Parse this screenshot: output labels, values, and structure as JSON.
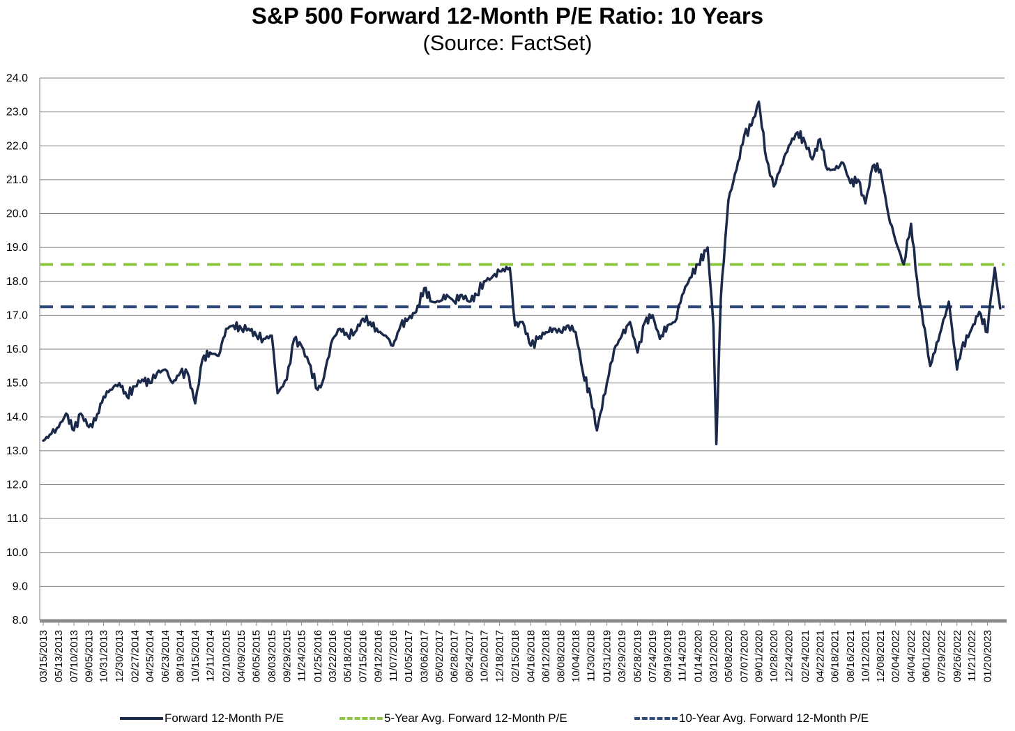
{
  "chart_data": {
    "type": "line",
    "title": "S&P 500 Forward 12-Month P/E Ratio: 10 Years",
    "subtitle": "(Source: FactSet)",
    "xlabel": "",
    "ylabel": "",
    "ylim": [
      8.0,
      24.0
    ],
    "y_ticks": [
      "24.0",
      "23.0",
      "22.0",
      "21.0",
      "20.0",
      "19.0",
      "18.0",
      "17.0",
      "16.0",
      "15.0",
      "14.0",
      "13.0",
      "12.0",
      "11.0",
      "10.0",
      "9.0",
      "8.0"
    ],
    "x_tick_labels": [
      "03/15/2013",
      "05/13/2013",
      "07/10/2013",
      "09/05/2013",
      "10/31/2013",
      "12/30/2013",
      "02/27/2014",
      "04/25/2014",
      "06/23/2014",
      "08/19/2014",
      "10/15/2014",
      "12/11/2014",
      "02/10/2015",
      "04/09/2015",
      "06/05/2015",
      "08/03/2015",
      "09/29/2015",
      "11/24/2015",
      "01/25/2016",
      "03/22/2016",
      "05/18/2016",
      "07/15/2016",
      "09/12/2016",
      "11/07/2016",
      "01/05/2017",
      "03/06/2017",
      "05/02/2017",
      "06/28/2017",
      "08/24/2017",
      "10/20/2017",
      "12/18/2017",
      "02/15/2018",
      "04/16/2018",
      "06/12/2018",
      "08/08/2018",
      "10/04/2018",
      "11/30/2018",
      "01/31/2019",
      "03/29/2019",
      "05/28/2019",
      "07/24/2019",
      "09/19/2019",
      "11/14/2019",
      "01/14/2020",
      "03/12/2020",
      "05/08/2020",
      "07/07/2020",
      "09/01/2020",
      "10/28/2020",
      "12/24/2020",
      "02/24/2021",
      "04/22/2021",
      "06/18/2021",
      "08/16/2021",
      "10/12/2021",
      "12/08/2021",
      "02/04/2022",
      "04/04/2022",
      "06/01/2022",
      "07/29/2022",
      "09/26/2022",
      "11/21/2022",
      "01/20/2023"
    ],
    "grid": true,
    "legend_position": "bottom",
    "series": [
      {
        "name": "Forward 12-Month P/E",
        "color": "#1b2a4a",
        "style": "solid",
        "x": [
          "03/15/2013",
          "04/15/2013",
          "05/13/2013",
          "06/10/2013",
          "07/10/2013",
          "08/05/2013",
          "09/05/2013",
          "10/01/2013",
          "10/31/2013",
          "11/25/2013",
          "12/30/2013",
          "01/28/2014",
          "02/27/2014",
          "03/27/2014",
          "04/25/2014",
          "05/23/2014",
          "06/23/2014",
          "07/21/2014",
          "08/19/2014",
          "09/16/2014",
          "10/15/2014",
          "11/12/2014",
          "12/11/2014",
          "01/12/2015",
          "02/10/2015",
          "03/10/2015",
          "04/09/2015",
          "05/07/2015",
          "06/05/2015",
          "07/03/2015",
          "08/03/2015",
          "08/25/2015",
          "09/29/2015",
          "10/27/2015",
          "11/24/2015",
          "12/22/2015",
          "01/25/2016",
          "02/11/2016",
          "03/22/2016",
          "04/19/2016",
          "05/18/2016",
          "06/15/2016",
          "07/15/2016",
          "08/12/2016",
          "09/12/2016",
          "10/10/2016",
          "11/07/2016",
          "12/06/2016",
          "01/05/2017",
          "02/03/2017",
          "03/06/2017",
          "04/04/2017",
          "05/02/2017",
          "05/31/2017",
          "06/28/2017",
          "07/27/2017",
          "08/24/2017",
          "09/22/2017",
          "10/20/2017",
          "11/17/2017",
          "12/18/2017",
          "01/26/2018",
          "02/15/2018",
          "03/16/2018",
          "04/16/2018",
          "05/14/2018",
          "06/12/2018",
          "07/11/2018",
          "08/08/2018",
          "09/06/2018",
          "10/04/2018",
          "11/01/2018",
          "11/30/2018",
          "12/24/2018",
          "01/31/2019",
          "02/28/2019",
          "03/29/2019",
          "04/29/2019",
          "05/28/2019",
          "06/25/2019",
          "07/24/2019",
          "08/21/2019",
          "09/19/2019",
          "10/17/2019",
          "11/14/2019",
          "12/13/2019",
          "01/14/2020",
          "02/19/2020",
          "03/12/2020",
          "03/23/2020",
          "04/09/2020",
          "05/08/2020",
          "06/08/2020",
          "07/07/2020",
          "08/04/2020",
          "09/01/2020",
          "09/30/2020",
          "10/28/2020",
          "11/25/2020",
          "12/24/2020",
          "01/26/2021",
          "02/24/2021",
          "03/24/2021",
          "04/22/2021",
          "05/20/2021",
          "06/18/2021",
          "07/19/2021",
          "08/16/2021",
          "09/14/2021",
          "10/12/2021",
          "11/09/2021",
          "12/08/2021",
          "01/07/2022",
          "02/04/2022",
          "03/07/2022",
          "04/04/2022",
          "05/03/2022",
          "06/01/2022",
          "06/16/2022",
          "07/29/2022",
          "08/26/2022",
          "09/26/2022",
          "10/13/2022",
          "11/21/2022",
          "12/20/2022",
          "01/20/2023",
          "02/02/2023",
          "02/17/2023",
          "03/10/2023"
        ],
        "values": [
          13.3,
          13.5,
          13.7,
          14.1,
          13.6,
          14.1,
          13.7,
          13.9,
          14.6,
          14.8,
          15.0,
          14.6,
          14.9,
          15.1,
          15.0,
          15.3,
          15.4,
          15.0,
          15.3,
          15.3,
          14.4,
          15.7,
          15.9,
          15.8,
          16.6,
          16.7,
          16.6,
          16.6,
          16.4,
          16.3,
          16.4,
          14.7,
          15.1,
          16.3,
          16.1,
          15.6,
          14.8,
          15.0,
          16.3,
          16.6,
          16.4,
          16.5,
          16.9,
          16.8,
          16.5,
          16.4,
          16.1,
          16.7,
          16.9,
          17.1,
          17.8,
          17.4,
          17.4,
          17.6,
          17.4,
          17.6,
          17.4,
          17.6,
          18.0,
          18.1,
          18.3,
          18.4,
          16.7,
          16.8,
          16.1,
          16.3,
          16.5,
          16.6,
          16.5,
          16.7,
          16.5,
          15.3,
          14.6,
          13.6,
          15.0,
          16.0,
          16.4,
          16.8,
          15.9,
          16.8,
          17.0,
          16.3,
          16.7,
          16.8,
          17.6,
          18.1,
          18.5,
          19.0,
          16.7,
          13.2,
          17.5,
          20.4,
          21.3,
          22.3,
          22.6,
          23.3,
          21.6,
          20.8,
          21.4,
          22.0,
          22.4,
          22.1,
          21.6,
          22.2,
          21.3,
          21.3,
          21.5,
          20.9,
          21.0,
          20.3,
          21.4,
          21.3,
          20.0,
          19.2,
          18.5,
          19.7,
          17.6,
          16.3,
          15.5,
          16.6,
          17.4,
          15.4,
          16.0,
          16.6,
          17.1,
          16.5,
          17.5,
          18.4,
          17.2
        ]
      },
      {
        "name": "5-Year Avg. Forward 12-Month P/E",
        "color": "#8dc63f",
        "style": "dashed",
        "value": 18.5
      },
      {
        "name": "10-Year Avg. Forward 12-Month P/E",
        "color": "#2e4a7a",
        "style": "dashed",
        "value": 17.25
      }
    ]
  }
}
